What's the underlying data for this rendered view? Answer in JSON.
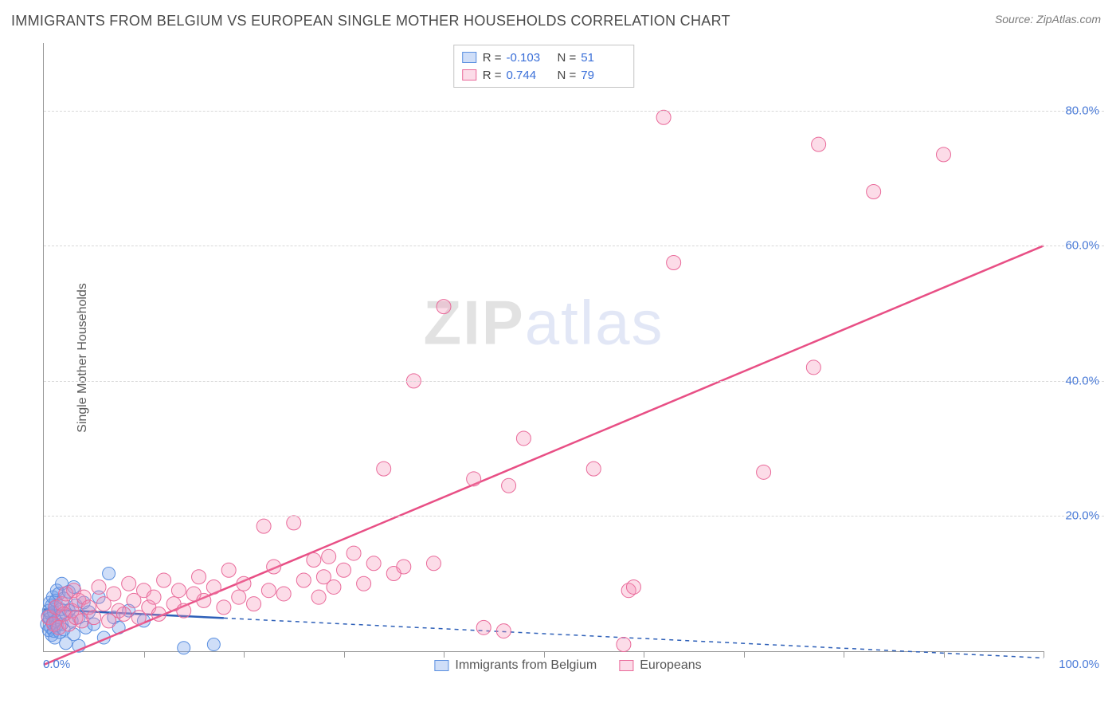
{
  "title": "IMMIGRANTS FROM BELGIUM VS EUROPEAN SINGLE MOTHER HOUSEHOLDS CORRELATION CHART",
  "source": "Source: ZipAtlas.com",
  "ylabel": "Single Mother Households",
  "watermark": {
    "part1": "ZIP",
    "part2": "atlas"
  },
  "chart": {
    "type": "scatter",
    "background_color": "#ffffff",
    "grid_color": "#d8d8d8",
    "axis_color": "#999999",
    "xlim": [
      0,
      100
    ],
    "ylim": [
      0,
      90
    ],
    "x_origin_label": "0.0%",
    "x_max_label": "100.0%",
    "xtick_positions": [
      10,
      20,
      30,
      40,
      50,
      60,
      70,
      80,
      90,
      100
    ],
    "yticks": [
      {
        "v": 20,
        "label": "20.0%"
      },
      {
        "v": 40,
        "label": "40.0%"
      },
      {
        "v": 60,
        "label": "60.0%"
      },
      {
        "v": 80,
        "label": "80.0%"
      }
    ],
    "tick_label_color": "#4a7bd8",
    "series": [
      {
        "id": "belgium",
        "label": "Immigrants from Belgium",
        "marker_fill": "rgba(118,160,235,0.35)",
        "marker_stroke": "#5a8fe0",
        "marker_r": 8,
        "line_color": "#2d5fb8",
        "line_width": 2.5,
        "line_dash_ext": "5,5",
        "R": "-0.103",
        "N": "51",
        "trend": {
          "x1": 0,
          "y1": 6.2,
          "x2": 100,
          "y2": -1.0,
          "solid_until_x": 18
        },
        "points": [
          [
            0.3,
            4.0
          ],
          [
            0.4,
            5.2
          ],
          [
            0.5,
            3.1
          ],
          [
            0.5,
            6.0
          ],
          [
            0.6,
            4.8
          ],
          [
            0.6,
            7.2
          ],
          [
            0.7,
            3.5
          ],
          [
            0.7,
            5.5
          ],
          [
            0.8,
            2.4
          ],
          [
            0.8,
            6.8
          ],
          [
            0.9,
            4.2
          ],
          [
            0.9,
            8.0
          ],
          [
            1.0,
            3.0
          ],
          [
            1.0,
            5.8
          ],
          [
            1.1,
            6.5
          ],
          [
            1.1,
            2.0
          ],
          [
            1.2,
            7.5
          ],
          [
            1.2,
            4.5
          ],
          [
            1.3,
            9.0
          ],
          [
            1.3,
            3.8
          ],
          [
            1.5,
            5.0
          ],
          [
            1.5,
            8.5
          ],
          [
            1.6,
            2.8
          ],
          [
            1.7,
            6.2
          ],
          [
            1.8,
            4.0
          ],
          [
            1.8,
            10.0
          ],
          [
            2.0,
            3.2
          ],
          [
            2.0,
            7.8
          ],
          [
            2.2,
            5.5
          ],
          [
            2.2,
            1.2
          ],
          [
            2.5,
            6.0
          ],
          [
            2.5,
            8.8
          ],
          [
            2.8,
            4.5
          ],
          [
            3.0,
            2.5
          ],
          [
            3.0,
            9.5
          ],
          [
            3.2,
            6.8
          ],
          [
            3.5,
            5.0
          ],
          [
            3.5,
            0.8
          ],
          [
            4.0,
            7.2
          ],
          [
            4.2,
            3.5
          ],
          [
            4.5,
            5.8
          ],
          [
            5.0,
            4.0
          ],
          [
            5.5,
            8.0
          ],
          [
            6.0,
            2.0
          ],
          [
            6.5,
            11.5
          ],
          [
            7.0,
            5.0
          ],
          [
            7.5,
            3.5
          ],
          [
            8.5,
            6.0
          ],
          [
            10.0,
            4.5
          ],
          [
            14.0,
            0.5
          ],
          [
            17.0,
            1.0
          ]
        ]
      },
      {
        "id": "europeans",
        "label": "Europeans",
        "marker_fill": "rgba(244,140,180,0.30)",
        "marker_stroke": "#e96a9a",
        "marker_r": 9,
        "line_color": "#e84f85",
        "line_width": 2.5,
        "R": "0.744",
        "N": "79",
        "trend": {
          "x1": 0,
          "y1": -2.0,
          "x2": 100,
          "y2": 60.0
        },
        "points": [
          [
            0.5,
            5.0
          ],
          [
            1.0,
            4.0
          ],
          [
            1.2,
            6.5
          ],
          [
            1.5,
            3.5
          ],
          [
            1.8,
            7.0
          ],
          [
            2.0,
            5.5
          ],
          [
            2.2,
            8.5
          ],
          [
            2.5,
            4.0
          ],
          [
            2.8,
            6.0
          ],
          [
            3.0,
            9.0
          ],
          [
            3.2,
            5.0
          ],
          [
            3.5,
            7.5
          ],
          [
            3.8,
            4.5
          ],
          [
            4.0,
            8.0
          ],
          [
            4.5,
            6.5
          ],
          [
            5.0,
            5.0
          ],
          [
            5.5,
            9.5
          ],
          [
            6.0,
            7.0
          ],
          [
            6.5,
            4.5
          ],
          [
            7.0,
            8.5
          ],
          [
            7.5,
            6.0
          ],
          [
            8.0,
            5.5
          ],
          [
            8.5,
            10.0
          ],
          [
            9.0,
            7.5
          ],
          [
            9.5,
            5.0
          ],
          [
            10.0,
            9.0
          ],
          [
            10.5,
            6.5
          ],
          [
            11.0,
            8.0
          ],
          [
            11.5,
            5.5
          ],
          [
            12.0,
            10.5
          ],
          [
            13.0,
            7.0
          ],
          [
            13.5,
            9.0
          ],
          [
            14.0,
            6.0
          ],
          [
            15.0,
            8.5
          ],
          [
            15.5,
            11.0
          ],
          [
            16.0,
            7.5
          ],
          [
            17.0,
            9.5
          ],
          [
            18.0,
            6.5
          ],
          [
            18.5,
            12.0
          ],
          [
            19.5,
            8.0
          ],
          [
            20.0,
            10.0
          ],
          [
            21.0,
            7.0
          ],
          [
            22.0,
            18.5
          ],
          [
            22.5,
            9.0
          ],
          [
            23.0,
            12.5
          ],
          [
            24.0,
            8.5
          ],
          [
            25.0,
            19.0
          ],
          [
            26.0,
            10.5
          ],
          [
            27.0,
            13.5
          ],
          [
            27.5,
            8.0
          ],
          [
            28.0,
            11.0
          ],
          [
            28.5,
            14.0
          ],
          [
            29.0,
            9.5
          ],
          [
            30.0,
            12.0
          ],
          [
            31.0,
            14.5
          ],
          [
            32.0,
            10.0
          ],
          [
            33.0,
            13.0
          ],
          [
            34.0,
            27.0
          ],
          [
            35.0,
            11.5
          ],
          [
            36.0,
            12.5
          ],
          [
            37.0,
            40.0
          ],
          [
            39.0,
            13.0
          ],
          [
            40.0,
            51.0
          ],
          [
            43.0,
            25.5
          ],
          [
            46.0,
            3.0
          ],
          [
            46.5,
            24.5
          ],
          [
            48.0,
            31.5
          ],
          [
            55.0,
            27.0
          ],
          [
            58.0,
            1.0
          ],
          [
            58.5,
            9.0
          ],
          [
            62.0,
            79.0
          ],
          [
            63.0,
            57.5
          ],
          [
            72.0,
            26.5
          ],
          [
            77.0,
            42.0
          ],
          [
            77.5,
            75.0
          ],
          [
            83.0,
            68.0
          ],
          [
            90.0,
            73.5
          ],
          [
            59.0,
            9.5
          ],
          [
            44.0,
            3.5
          ]
        ]
      }
    ]
  },
  "legend_top": {
    "r_label": "R =",
    "n_label": "N ="
  }
}
